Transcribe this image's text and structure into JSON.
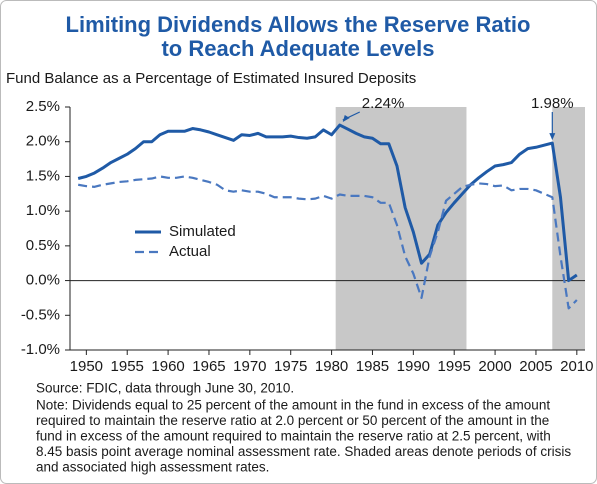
{
  "chart_data": {
    "type": "line",
    "title": [
      "Limiting Dividends Allows the Reserve Ratio",
      "to Reach Adequate Levels"
    ],
    "subtitle": "Fund Balance as a Percentage of Estimated Insured Deposits",
    "x": [
      1949,
      1950,
      1951,
      1952,
      1953,
      1954,
      1955,
      1956,
      1957,
      1958,
      1959,
      1960,
      1961,
      1962,
      1963,
      1964,
      1965,
      1966,
      1967,
      1968,
      1969,
      1970,
      1971,
      1972,
      1973,
      1974,
      1975,
      1976,
      1977,
      1978,
      1979,
      1980,
      1981,
      1982,
      1983,
      1984,
      1985,
      1986,
      1987,
      1988,
      1989,
      1990,
      1991,
      1992,
      1993,
      1994,
      1995,
      1996,
      1997,
      1998,
      1999,
      2000,
      2001,
      2002,
      2003,
      2004,
      2005,
      2006,
      2007,
      2008,
      2009,
      2010
    ],
    "series": [
      {
        "name": "Simulated",
        "color": "#1f5aa6",
        "dash": false,
        "values": [
          1.47,
          1.5,
          1.55,
          1.62,
          1.7,
          1.76,
          1.82,
          1.9,
          2.0,
          2.0,
          2.1,
          2.15,
          2.15,
          2.15,
          2.19,
          2.17,
          2.14,
          2.1,
          2.06,
          2.02,
          2.1,
          2.09,
          2.12,
          2.07,
          2.07,
          2.07,
          2.08,
          2.06,
          2.05,
          2.07,
          2.17,
          2.1,
          2.24,
          2.18,
          2.12,
          2.07,
          2.05,
          1.97,
          1.97,
          1.65,
          1.05,
          0.7,
          0.25,
          0.38,
          0.8,
          0.98,
          1.12,
          1.25,
          1.38,
          1.48,
          1.57,
          1.65,
          1.67,
          1.7,
          1.82,
          1.9,
          1.92,
          1.95,
          1.98,
          1.2,
          0.0,
          0.08
        ]
      },
      {
        "name": "Actual",
        "color": "#4a78c0",
        "dash": true,
        "values": [
          1.38,
          1.36,
          1.35,
          1.38,
          1.4,
          1.42,
          1.43,
          1.45,
          1.46,
          1.47,
          1.5,
          1.48,
          1.48,
          1.5,
          1.48,
          1.45,
          1.42,
          1.38,
          1.3,
          1.28,
          1.3,
          1.28,
          1.28,
          1.25,
          1.2,
          1.2,
          1.2,
          1.18,
          1.17,
          1.18,
          1.22,
          1.18,
          1.24,
          1.22,
          1.22,
          1.22,
          1.2,
          1.12,
          1.12,
          0.8,
          0.35,
          0.1,
          -0.25,
          0.35,
          0.7,
          1.15,
          1.25,
          1.35,
          1.38,
          1.4,
          1.39,
          1.36,
          1.37,
          1.3,
          1.32,
          1.32,
          1.3,
          1.25,
          1.2,
          0.35,
          -0.4,
          -0.28
        ]
      }
    ],
    "xlim": [
      1948,
      2011
    ],
    "xticks": [
      1950,
      1955,
      1960,
      1965,
      1970,
      1975,
      1980,
      1985,
      1990,
      1995,
      2000,
      2005,
      2010
    ],
    "ylim": [
      -1.0,
      2.5
    ],
    "yticks": [
      {
        "value": 2.5,
        "label": "2.5%"
      },
      {
        "value": 2.0,
        "label": "2.0%"
      },
      {
        "value": 1.5,
        "label": "1.5%"
      },
      {
        "value": 1.0,
        "label": "1.0%"
      },
      {
        "value": 0.5,
        "label": "0.5%"
      },
      {
        "value": 0.0,
        "label": "0.0%"
      },
      {
        "value": -0.5,
        "label": "-0.5%"
      },
      {
        "value": -1.0,
        "label": "-1.0%"
      }
    ],
    "shaded": [
      [
        1980.5,
        1996.5
      ],
      [
        2007,
        2011
      ]
    ],
    "shade_color": "#c8c8c8",
    "annotations": [
      {
        "text": "2.24%",
        "x": 1981,
        "y": 2.24
      },
      {
        "text": "1.98%",
        "x": 2007,
        "y": 1.98
      }
    ],
    "legend": "center-left",
    "source": "Source: FDIC, data through June 30, 2010.",
    "note": [
      "Note: Dividends equal to 25 percent of the amount in the fund in excess of the amount",
      "required to maintain the reserve ratio at 2.0 percent or 50 percent of the amount in the",
      "fund in excess of the amount required to maintain the reserve ratio at 2.5 percent, with",
      "8.45 basis point average nominal assessment rate. Shaded areas denote periods of crisis",
      "and associated high assessment rates."
    ]
  }
}
